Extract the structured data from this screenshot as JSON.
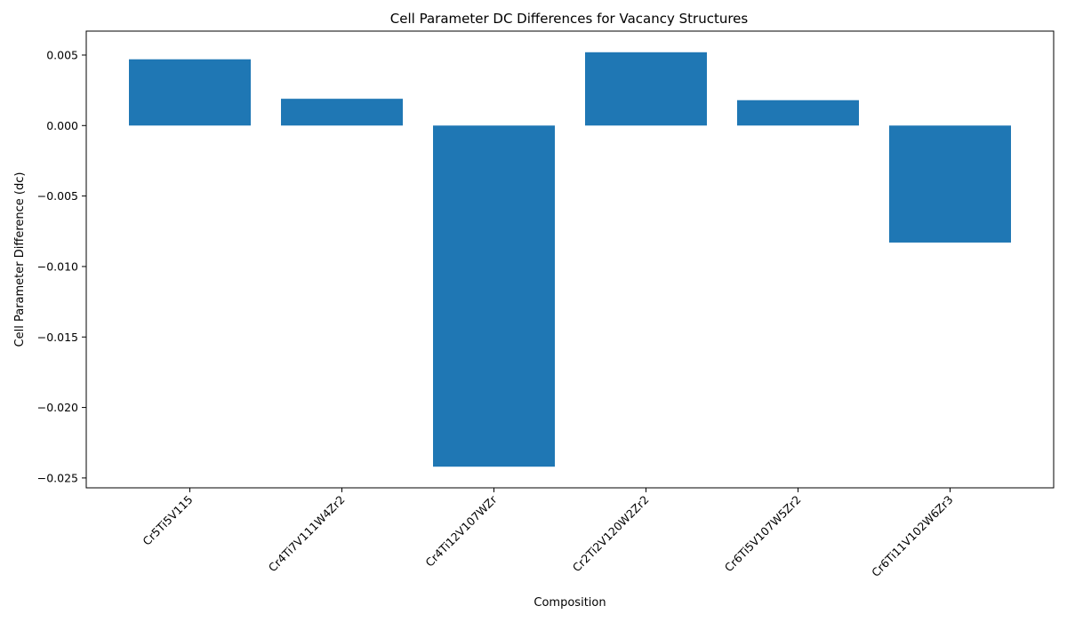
{
  "chart_data": {
    "type": "bar",
    "title": "Cell Parameter DC Differences for Vacancy Structures",
    "xlabel": "Composition",
    "ylabel": "Cell Parameter Difference (dc)",
    "categories": [
      "Cr5Ti5V115",
      "Cr4Ti7V111W4Zr2",
      "Cr4Ti12V107WZr",
      "Cr2Ti2V120W2Zr2",
      "Cr6Ti5V107W5Zr2",
      "Cr6Ti11V102W6Zr3"
    ],
    "values": [
      0.0047,
      0.0019,
      -0.0242,
      0.0052,
      0.0018,
      -0.0083
    ],
    "ylim": [
      -0.0257,
      0.0067
    ],
    "yticks": [
      0.005,
      0.0,
      -0.005,
      -0.01,
      -0.015,
      -0.02,
      -0.025
    ],
    "ytick_labels": [
      "0.005",
      "0.000",
      "−0.005",
      "−0.010",
      "−0.015",
      "−0.020",
      "−0.025"
    ],
    "bar_color": "#1f77b4",
    "grid": false,
    "legend": "none"
  }
}
